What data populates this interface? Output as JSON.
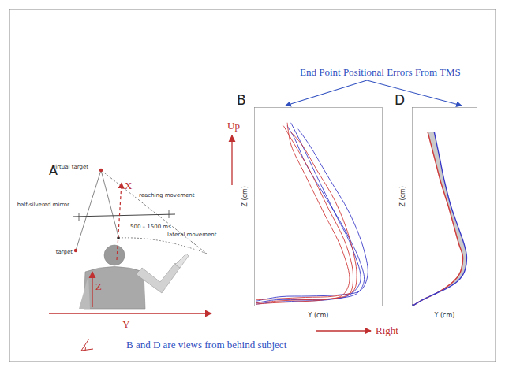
{
  "slide": {
    "annotation": "End Point Positional Errors From TMS",
    "note": "B and D are views from behind subject",
    "up": "Up",
    "right": "Right"
  },
  "diagram": {
    "title": "A",
    "labels": {
      "virtual_target": "virtual target",
      "reaching_movement": "reaching movement",
      "mirror": "half-silvered mirror",
      "delay": "500 – 1500 ms",
      "lateral_movement": "lateral movement",
      "target": "target"
    },
    "axes": {
      "x": "X",
      "y": "Y",
      "z": "Z"
    }
  },
  "chart_data": [
    {
      "type": "line",
      "title": "B",
      "x_label": "Y (cm)",
      "y_label": "Z (cm)",
      "xlim": [
        0,
        35
      ],
      "ylim": [
        0,
        32
      ],
      "tick_labels": false,
      "series": [
        {
          "color": "#3a3ac8",
          "x": [
            0.5,
            6,
            14,
            22,
            28,
            30,
            29,
            25,
            19,
            14,
            11,
            9
          ],
          "values": [
            0.5,
            1,
            1,
            1.2,
            2,
            4,
            7,
            12,
            18,
            23,
            27,
            29
          ]
        },
        {
          "color": "#3a3ac8",
          "x": [
            0.5,
            5,
            12,
            20,
            26,
            29,
            27,
            22,
            17,
            13,
            10
          ],
          "values": [
            0.3,
            0.6,
            0.8,
            1,
            1.8,
            4,
            9,
            15,
            21,
            26,
            29.5
          ]
        },
        {
          "color": "#3a3ac8",
          "x": [
            0.5,
            7,
            15,
            23,
            29,
            31,
            30,
            26,
            20,
            15,
            12
          ],
          "values": [
            0.8,
            1.5,
            1.6,
            1.8,
            2.5,
            5,
            9,
            15,
            21,
            26,
            28.5
          ]
        },
        {
          "color": "#d03a3a",
          "x": [
            0.5,
            6,
            13,
            21,
            26,
            27,
            25,
            20,
            15,
            11,
            8
          ],
          "values": [
            0.5,
            0.8,
            1,
            1.2,
            2,
            5,
            10,
            16,
            22,
            26,
            29
          ]
        },
        {
          "color": "#d03a3a",
          "x": [
            0.5,
            5,
            12,
            19,
            24,
            26,
            24,
            19,
            14,
            10,
            9
          ],
          "values": [
            0.3,
            0.5,
            0.7,
            1,
            1.7,
            4,
            9,
            15,
            21,
            26,
            29.5
          ]
        },
        {
          "color": "#d03a3a",
          "x": [
            0.5,
            7,
            14,
            22,
            27,
            28,
            26,
            22,
            17,
            13,
            10
          ],
          "values": [
            1,
            1.2,
            1.4,
            1.6,
            2.4,
            5,
            11,
            17,
            22,
            26,
            28
          ]
        }
      ]
    },
    {
      "type": "line",
      "title": "D",
      "x_label": "Y (cm)",
      "y_label": "Z (cm)",
      "xlim": [
        0,
        25
      ],
      "ylim": [
        0,
        32
      ],
      "tick_labels": false,
      "y": [
        0,
        1,
        2,
        3,
        4,
        5,
        6,
        8,
        10,
        13,
        16,
        20,
        24,
        28
      ],
      "series": [
        {
          "color": "#d03a3a",
          "values": [
            0,
            4,
            9,
            13,
            16,
            18,
            19,
            19.5,
            18,
            16,
            14,
            11,
            8.5,
            6
          ]
        },
        {
          "color": "#3a3ac8",
          "values": [
            0,
            4,
            9,
            14,
            17.5,
            19.5,
            20.5,
            21,
            20,
            17.5,
            15,
            12.5,
            10.5,
            8.5
          ]
        }
      ]
    }
  ]
}
